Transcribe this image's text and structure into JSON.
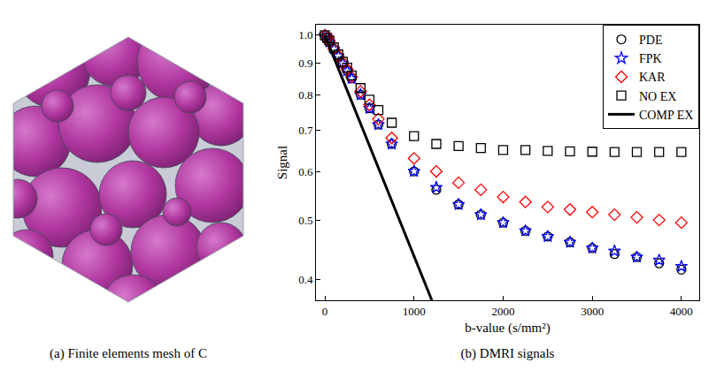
{
  "panel_a": {
    "caption": "(a) Finite elements mesh of C"
  },
  "chart_data": {
    "type": "scatter",
    "caption": "(b) DMRI signals",
    "x_label": "b-value (s/mm²)",
    "y_label": "Signal",
    "x": [
      0,
      25,
      50,
      100,
      150,
      200,
      250,
      300,
      400,
      500,
      600,
      750,
      1000,
      1250,
      1500,
      1750,
      2000,
      2250,
      2500,
      2750,
      3000,
      3250,
      3500,
      3750,
      4000
    ],
    "series": [
      {
        "name": "PDE",
        "color": "#000000",
        "marker": "circle-open",
        "values": [
          1.0,
          0.99,
          0.975,
          0.95,
          0.925,
          0.9,
          0.875,
          0.85,
          0.8,
          0.76,
          0.715,
          0.665,
          0.6,
          0.56,
          0.53,
          0.51,
          0.495,
          0.48,
          0.47,
          0.46,
          0.45,
          0.44,
          0.435,
          0.425,
          0.415
        ]
      },
      {
        "name": "FPK",
        "color": "#0000ff",
        "marker": "star-open",
        "values": [
          1.0,
          0.99,
          0.975,
          0.95,
          0.925,
          0.9,
          0.875,
          0.85,
          0.8,
          0.76,
          0.715,
          0.665,
          0.6,
          0.565,
          0.53,
          0.51,
          0.495,
          0.48,
          0.47,
          0.46,
          0.45,
          0.445,
          0.435,
          0.43,
          0.42
        ]
      },
      {
        "name": "KAR",
        "color": "#ff0000",
        "marker": "diamond-open",
        "values": [
          1.0,
          0.99,
          0.975,
          0.95,
          0.925,
          0.9,
          0.88,
          0.855,
          0.81,
          0.77,
          0.73,
          0.68,
          0.63,
          0.6,
          0.575,
          0.56,
          0.545,
          0.535,
          0.525,
          0.52,
          0.515,
          0.51,
          0.505,
          0.5,
          0.495
        ]
      },
      {
        "name": "NO EX",
        "color": "#000000",
        "marker": "square-open",
        "values": [
          1.0,
          0.99,
          0.98,
          0.955,
          0.93,
          0.905,
          0.885,
          0.86,
          0.82,
          0.785,
          0.755,
          0.72,
          0.685,
          0.665,
          0.66,
          0.655,
          0.65,
          0.65,
          0.648,
          0.647,
          0.646,
          0.645,
          0.645,
          0.645,
          0.645
        ]
      },
      {
        "name": "COMP EX",
        "color": "#000000",
        "type": "line",
        "line_style": "solid",
        "x": [
          0,
          1200
        ],
        "values": [
          1.0,
          0.37
        ]
      }
    ],
    "xlim": [
      -100,
      4200
    ],
    "xticks": [
      0,
      1000,
      2000,
      3000,
      4000
    ],
    "ylim": [
      0.37,
      1.04
    ],
    "yticks": [
      0.4,
      0.5,
      0.6,
      0.7,
      0.8,
      0.9,
      {
        "value": 1,
        "label": "1.0"
      }
    ],
    "log": "y",
    "grid": false,
    "legend": "top right"
  }
}
